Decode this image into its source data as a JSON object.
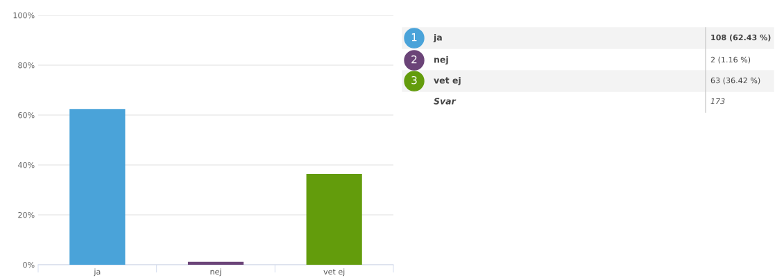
{
  "chart_data": {
    "type": "bar",
    "categories": [
      "ja",
      "nej",
      "vet ej"
    ],
    "values": [
      62.43,
      1.16,
      36.42
    ],
    "colors": [
      "#4aa3d9",
      "#6b4478",
      "#639c0c"
    ],
    "annotations": [
      "1",
      "108 (62.43 %)",
      "2",
      "2 (1.16 %)",
      "3",
      "63 (36.42 %)",
      "Svar",
      "173"
    ],
    "ylim": [
      0,
      100
    ],
    "yticks": [
      {
        "value": 0,
        "label": "0%"
      },
      {
        "value": 20,
        "label": "20%"
      },
      {
        "value": 40,
        "label": "40%"
      },
      {
        "value": 60,
        "label": "60%"
      },
      {
        "value": 80,
        "label": "80%"
      },
      {
        "value": 100,
        "label": "100%"
      }
    ],
    "grid": "y",
    "legend": false
  }
}
